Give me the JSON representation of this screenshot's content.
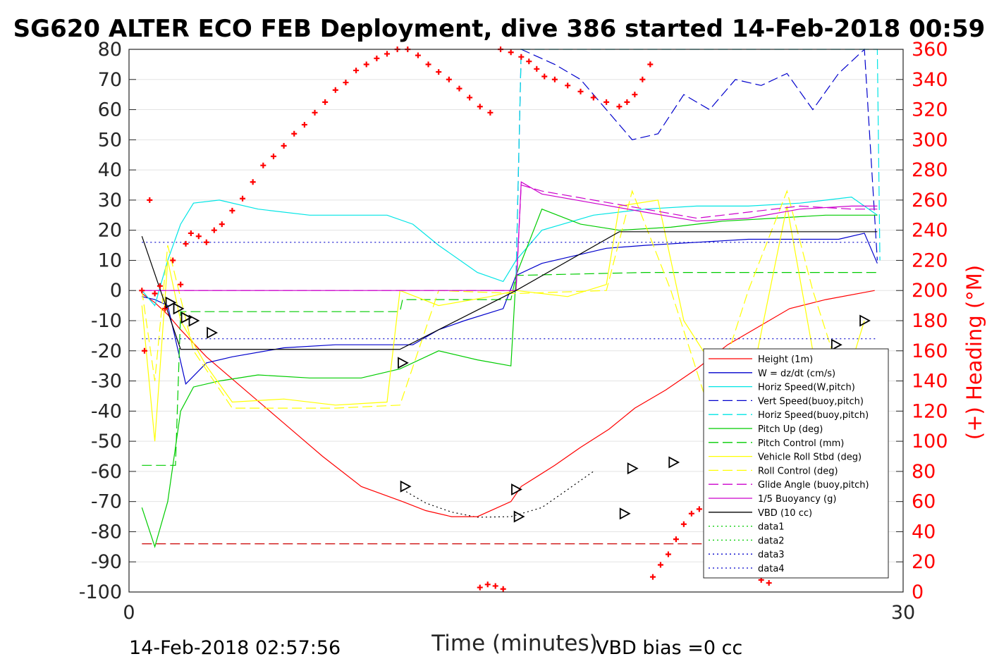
{
  "chart_data": {
    "type": "line",
    "title": "SG620 ALTER ECO FEB Deployment, dive 386 started 14-Feb-2018 00:59",
    "xlabel": "Time (minutes)",
    "ylabel": "",
    "ylabel_right": "(+) Heading (°M)",
    "xlim": [
      0,
      30
    ],
    "ylim": [
      -100,
      80
    ],
    "ylim_right": [
      0,
      360
    ],
    "x_ticks": [
      "0",
      "30"
    ],
    "y_ticks": [
      "80",
      "70",
      "60",
      "50",
      "40",
      "30",
      "20",
      "10",
      "0",
      "-10",
      "-20",
      "-30",
      "-40",
      "-50",
      "-60",
      "-70",
      "-80",
      "-90",
      "-100"
    ],
    "y_ticks_right": [
      "360",
      "340",
      "320",
      "300",
      "280",
      "260",
      "240",
      "220",
      "200",
      "180",
      "160",
      "140",
      "120",
      "100",
      "80",
      "60",
      "40",
      "20",
      "0"
    ],
    "grid": true,
    "legend_position": "right",
    "footer_left": "14-Feb-2018 02:57:56",
    "footer_right": "VBD bias =0 cc",
    "series": [
      {
        "name": "Height (1m)",
        "color": "#ff0000",
        "style": "solid",
        "x": [
          0.5,
          1.0,
          1.5,
          2.0,
          3.0,
          4.5,
          6.0,
          7.5,
          9.0,
          10.6,
          11.5,
          12.5,
          13.5,
          14.8,
          15.2,
          16.5,
          17.5,
          18.6,
          19.6,
          20.8,
          22.0,
          23.2,
          24.4,
          25.6,
          27.0,
          28.9
        ],
        "y": [
          -1,
          -4,
          -8,
          -13,
          -22,
          -33,
          -44,
          -55,
          -65,
          -70,
          -73,
          -75,
          -75,
          -70,
          -65,
          -58,
          -52,
          -46,
          -39,
          -33,
          -26,
          -18,
          -12,
          -6,
          -3,
          0
        ]
      },
      {
        "name": "W = dz/dt (cm/s)",
        "color": "#0000cc",
        "style": "solid",
        "x": [
          0.5,
          1.0,
          1.5,
          2.2,
          3.0,
          4.0,
          6.0,
          8.0,
          10.0,
          11.0,
          12.0,
          13.0,
          14.5,
          15.0,
          16.0,
          17.5,
          18.5,
          20.0,
          22.0,
          24.0,
          26.0,
          27.5,
          28.5,
          29.0
        ],
        "y": [
          -2,
          -3,
          -5,
          -31,
          -24,
          -22,
          -19,
          -18,
          -18,
          -18,
          -13,
          -10,
          -6,
          5,
          9,
          12,
          14,
          15,
          16,
          17,
          17,
          17,
          19,
          9
        ]
      },
      {
        "name": "Horiz Speed(W,pitch)",
        "color": "#00e5e5",
        "style": "solid",
        "x": [
          0.5,
          1.0,
          1.5,
          2.0,
          2.5,
          3.5,
          5.0,
          7.0,
          9.0,
          10.0,
          11.0,
          12.0,
          13.5,
          14.5,
          15.0,
          16.0,
          18.0,
          20.0,
          22.0,
          24.0,
          26.0,
          28.0,
          29.0
        ],
        "y": [
          0,
          -5,
          10,
          22,
          29,
          30,
          27,
          25,
          25,
          25,
          22,
          15,
          6,
          3,
          10,
          20,
          25,
          27,
          28,
          28,
          29,
          31,
          25
        ]
      },
      {
        "name": "Vert Speed(buoy,pitch)",
        "color": "#0000cc",
        "style": "dashed",
        "x": [
          15.0,
          15.2,
          16.5,
          17.5,
          18.5,
          19.5,
          20.5,
          21.5,
          22.5,
          23.5,
          24.5,
          25.5,
          26.5,
          27.5,
          28.5,
          29.0
        ],
        "y": [
          5,
          80,
          75,
          70,
          60,
          50,
          52,
          65,
          60,
          70,
          68,
          72,
          60,
          72,
          80,
          10
        ]
      },
      {
        "name": "Horiz Speed(buoy,pitch)",
        "color": "#00e5e5",
        "style": "dashed",
        "x": [
          15.0,
          15.2,
          16.0,
          29.0,
          29.1
        ],
        "y": [
          5,
          80,
          80,
          80,
          10
        ]
      },
      {
        "name": "Pitch Up (deg)",
        "color": "#00cc00",
        "style": "solid",
        "x": [
          0.5,
          1.0,
          1.5,
          2.0,
          2.5,
          3.5,
          5.0,
          7.0,
          9.0,
          10.5,
          12.0,
          13.5,
          14.8,
          15.0,
          16.0,
          17.5,
          19.0,
          21.0,
          23.0,
          25.0,
          27.0,
          29.0
        ],
        "y": [
          -72,
          -85,
          -70,
          -40,
          -32,
          -30,
          -28,
          -29,
          -29,
          -26,
          -20,
          -23,
          -25,
          5,
          27,
          22,
          20,
          21,
          23,
          24,
          25,
          25
        ]
      },
      {
        "name": "Pitch Control (mm)",
        "color": "#00cc00",
        "style": "dashed",
        "x": [
          0.5,
          1.8,
          2.0,
          2.3,
          10.5,
          10.6,
          14.8,
          15.0,
          20.0,
          29.0
        ],
        "y": [
          -58,
          -58,
          -7,
          -7,
          -7,
          -3,
          -3,
          5,
          6,
          6
        ]
      },
      {
        "name": "Vehicle Roll Stbd (deg)",
        "color": "#ffff00",
        "style": "solid",
        "x": [
          0.5,
          1.0,
          1.5,
          2.0,
          3.0,
          4.0,
          6.0,
          8.0,
          10.0,
          10.5,
          12.0,
          14.0,
          15.0,
          17.0,
          18.5,
          19.0,
          20.5,
          21.5,
          23.0,
          24.0,
          25.5,
          26.5,
          27.5,
          28.5
        ],
        "y": [
          -5,
          -50,
          10,
          -10,
          -25,
          -37,
          -36,
          -38,
          -37,
          0,
          -5,
          -2,
          0,
          -2,
          2,
          28,
          30,
          -10,
          -30,
          -35,
          28,
          -20,
          -38,
          -10
        ]
      },
      {
        "name": "Roll Control (deg)",
        "color": "#ffff00",
        "style": "dashed",
        "x": [
          0.5,
          1.0,
          1.5,
          2.5,
          4.0,
          8.0,
          10.5,
          12.0,
          15.0,
          18.5,
          19.5,
          21.0,
          22.5,
          24.0,
          25.5,
          26.5,
          28.0
        ],
        "y": [
          0,
          -30,
          15,
          -20,
          -39,
          -39,
          -38,
          0,
          -1,
          0,
          33,
          0,
          -40,
          0,
          33,
          0,
          -40
        ]
      },
      {
        "name": "Glide Angle (buoy,pitch)",
        "color": "#cc00cc",
        "style": "dashed",
        "x": [
          0.5,
          15.0,
          15.2,
          16.0,
          18.0,
          20.0,
          22.0,
          24.0,
          26.0,
          28.0,
          29.0
        ],
        "y": [
          0,
          0,
          35,
          33,
          30,
          27,
          24,
          26,
          28,
          27,
          27
        ]
      },
      {
        "name": "1/5 Buoyancy (g)",
        "color": "#cc00cc",
        "style": "solid",
        "x": [
          0.5,
          15.0,
          15.2,
          16.0,
          18.0,
          20.0,
          22.0,
          24.0,
          26.0,
          28.0,
          29.0
        ],
        "y": [
          0,
          0,
          36,
          32,
          29,
          26,
          23,
          24,
          27,
          28,
          28
        ]
      },
      {
        "name": "VBD (10 cc)",
        "color": "#000000",
        "style": "solid",
        "x": [
          0.5,
          2.0,
          10.5,
          15.0,
          19.0,
          29.0
        ],
        "y": [
          18,
          -19.5,
          -19.5,
          0,
          19.5,
          19.5
        ]
      },
      {
        "name": "data1",
        "color": "#00cc00",
        "style": "dotted",
        "x": [],
        "y": []
      },
      {
        "name": "data2",
        "color": "#00cc00",
        "style": "dotted",
        "x": [],
        "y": []
      },
      {
        "name": "data3",
        "color": "#0000cc",
        "style": "dotted",
        "x": [
          0.5,
          29.0
        ],
        "y": [
          16,
          16
        ]
      },
      {
        "name": "data4",
        "color": "#0000cc",
        "style": "dotted",
        "x": [
          0.5,
          29.0
        ],
        "y": [
          -16,
          -16
        ]
      }
    ],
    "extra_lines": [
      {
        "color": "#cc0000",
        "style": "dashed",
        "x": [
          0.5,
          29.0
        ],
        "y": [
          -84,
          -84
        ]
      },
      {
        "color": "#000000",
        "style": "dotted",
        "x": [
          10.6,
          11.5,
          12.5,
          13.5,
          14.8,
          16.0,
          17.0,
          18.0
        ],
        "y": [
          -66,
          -70.5,
          -73.5,
          -75.2,
          -75,
          -72,
          -66,
          -60
        ]
      }
    ],
    "heading": {
      "name": "(+) Heading (°M)",
      "color": "#ff0000",
      "x": [
        0.5,
        0.6,
        0.8,
        1.0,
        1.2,
        1.4,
        1.7,
        2.0,
        2.2,
        2.4,
        2.7,
        3.0,
        3.3,
        3.6,
        4.0,
        4.4,
        4.8,
        5.2,
        5.6,
        6.0,
        6.4,
        6.8,
        7.2,
        7.6,
        8.0,
        8.4,
        8.8,
        9.2,
        9.6,
        10.0,
        10.4,
        10.8,
        11.2,
        11.6,
        12.0,
        12.4,
        12.8,
        13.2,
        13.6,
        14.0,
        14.4,
        14.8,
        15.2,
        15.5,
        15.8,
        16.1,
        16.5,
        17.0,
        17.5,
        18.0,
        18.5,
        19.0,
        19.3,
        19.6,
        19.9,
        20.2,
        13.6,
        13.9,
        14.2,
        14.5,
        20.3,
        20.6,
        20.9,
        21.2,
        21.5,
        21.8,
        22.1,
        22.4,
        22.7,
        23.0,
        23.3,
        23.6,
        23.9,
        24.2,
        24.5,
        24.8,
        25.1,
        25.4,
        25.7,
        26.0,
        26.3,
        26.6,
        26.9,
        27.2,
        27.5,
        27.8,
        28.1,
        28.4,
        28.7,
        29.0
      ],
      "y": [
        200,
        160,
        260,
        198,
        203,
        188,
        220,
        204,
        231,
        238,
        236,
        232,
        240,
        244,
        253,
        261,
        272,
        283,
        289,
        296,
        304,
        310,
        318,
        325,
        333,
        338,
        346,
        350,
        354,
        357,
        360,
        360,
        356,
        350,
        345,
        340,
        334,
        328,
        322,
        318,
        360,
        358,
        355,
        352,
        347,
        342,
        340,
        336,
        332,
        328,
        325,
        322,
        325,
        330,
        340,
        350,
        3,
        5,
        4,
        2,
        10,
        18,
        25,
        35,
        45,
        52,
        55,
        57,
        56,
        45,
        32,
        22,
        18,
        12,
        8,
        6,
        18,
        30,
        42,
        55,
        60,
        58,
        48,
        35,
        33,
        28,
        22,
        12,
        22,
        25
      ]
    },
    "markers": {
      "style": "triangle",
      "color": "#000000",
      "x": [
        1.6,
        1.9,
        2.2,
        2.5,
        3.2,
        10.6,
        10.7,
        15.0,
        15.1,
        19.2,
        19.5,
        21.1,
        22.6,
        23.8,
        25.1,
        26.3,
        27.4,
        28.5
      ],
      "y": [
        -4,
        -6,
        -9,
        -10,
        -14,
        -24,
        -65,
        -66,
        -75,
        -74,
        -59,
        -57,
        -46,
        -39,
        -33,
        -26,
        -18,
        -10
      ]
    }
  }
}
